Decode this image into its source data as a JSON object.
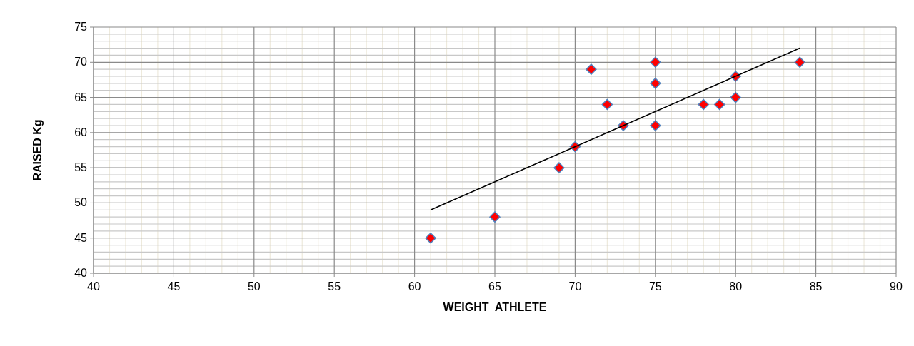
{
  "chart_data": {
    "type": "scatter",
    "xlabel": "WEIGHT  ATHLETE",
    "ylabel": "RAISED Kg",
    "xlim": [
      40,
      90
    ],
    "xticks": [
      40,
      45,
      50,
      55,
      60,
      65,
      70,
      75,
      80,
      85,
      90
    ],
    "ylim": [
      40,
      75
    ],
    "yticks": [
      40,
      45,
      50,
      55,
      60,
      65,
      70,
      75
    ],
    "grid": true,
    "series": [
      {
        "marker": "diamond",
        "color": "#ff0000",
        "x": [
          61,
          65,
          69,
          70,
          71,
          72,
          73,
          75,
          75,
          75,
          78,
          79,
          80,
          80,
          84
        ],
        "values": [
          45,
          48,
          55,
          58,
          69,
          64,
          61,
          70,
          67,
          61,
          64,
          64,
          68,
          65,
          70
        ]
      },
      {
        "type": "line",
        "color": "#000000",
        "x": [
          61,
          84
        ],
        "values": [
          49,
          72
        ]
      }
    ]
  }
}
